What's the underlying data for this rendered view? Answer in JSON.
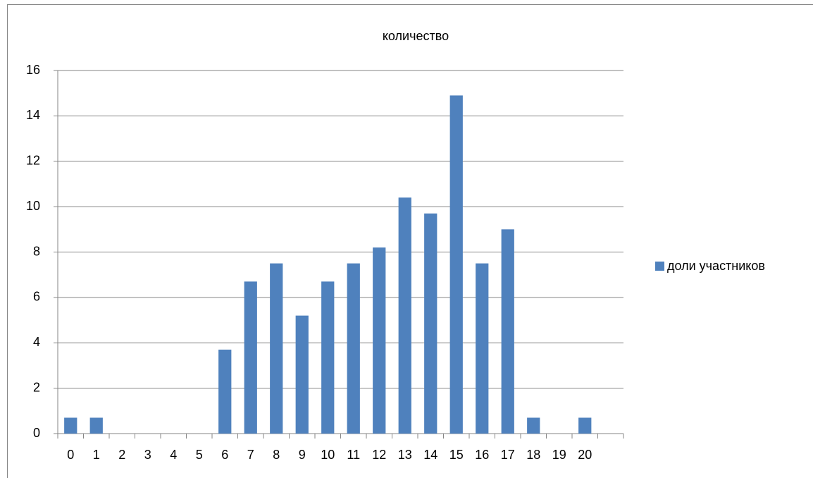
{
  "chart_data": {
    "type": "bar",
    "title": "количество",
    "categories": [
      "0",
      "1",
      "2",
      "3",
      "4",
      "5",
      "6",
      "7",
      "8",
      "9",
      "10",
      "11",
      "12",
      "13",
      "14",
      "15",
      "16",
      "17",
      "18",
      "19",
      "20",
      null
    ],
    "series": [
      {
        "name": "доли участников",
        "color": "#4f81bd",
        "values": [
          0.7,
          0.7,
          0,
          0,
          0,
          0,
          3.7,
          6.7,
          7.5,
          5.2,
          6.7,
          7.5,
          8.2,
          10.4,
          9.7,
          14.9,
          7.5,
          9,
          0.7,
          0,
          0.7,
          null
        ]
      }
    ],
    "ylim": [
      0,
      16
    ],
    "yticks": [
      0,
      2,
      4,
      6,
      8,
      10,
      12,
      14,
      16
    ],
    "grid": true,
    "legend": "right"
  }
}
